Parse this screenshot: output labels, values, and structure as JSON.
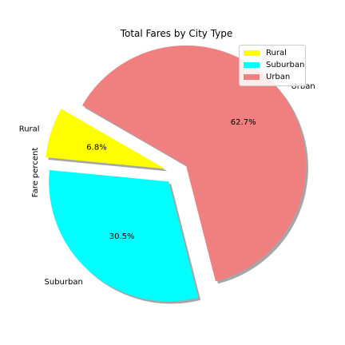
{
  "chart_data": {
    "type": "pie",
    "title": "Total Fares by City Type",
    "ylabel": "Fare percent",
    "slices": [
      {
        "label": "Rural",
        "value": 6.8,
        "pct_label": "6.8%",
        "color": "#ffff00",
        "explode": true
      },
      {
        "label": "Suburban",
        "value": 30.5,
        "pct_label": "30.5%",
        "color": "#00ffff",
        "explode": true
      },
      {
        "label": "Urban",
        "value": 62.7,
        "pct_label": "62.7%",
        "color": "#f08080",
        "explode": true
      }
    ],
    "legend": {
      "placement": "top-right",
      "entries": [
        "Rural",
        "Suburban",
        "Urban"
      ]
    },
    "shadow": true
  }
}
